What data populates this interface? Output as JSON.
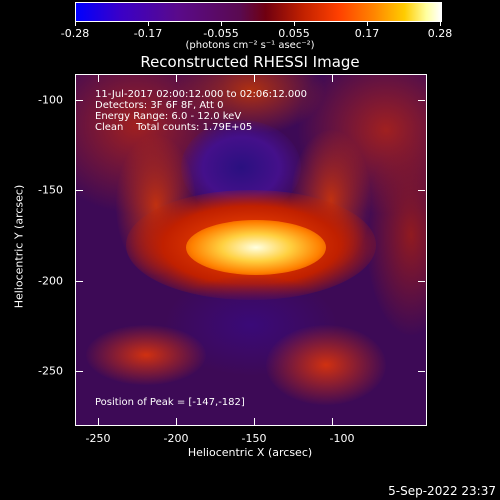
{
  "colorbar": {
    "ticks": [
      "-0.28",
      "-0.17",
      "-0.055",
      "0.055",
      "0.17",
      "0.28"
    ],
    "units": "(photons cm⁻² s⁻¹ asec⁻²)"
  },
  "title": "Reconstructed RHESSI Image",
  "info": {
    "line1": "11-Jul-2017 02:00:12.000 to 02:06:12.000",
    "line2": "Detectors: 3F 6F 8F, Att 0",
    "line3": "Energy Range: 6.0 - 12.0 keV",
    "line4": "Clean    Total counts: 1.79E+05"
  },
  "peak": "Position of Peak = [-147,-182]",
  "x_axis": {
    "label": "Heliocentric X (arcsec)",
    "ticks": [
      "-250",
      "-200",
      "-150",
      "-100"
    ]
  },
  "y_axis": {
    "label": "Heliocentric Y (arcsec)",
    "ticks": [
      "-100",
      "-150",
      "-200",
      "-250"
    ]
  },
  "timestamp": "5-Sep-2022 23:37"
}
